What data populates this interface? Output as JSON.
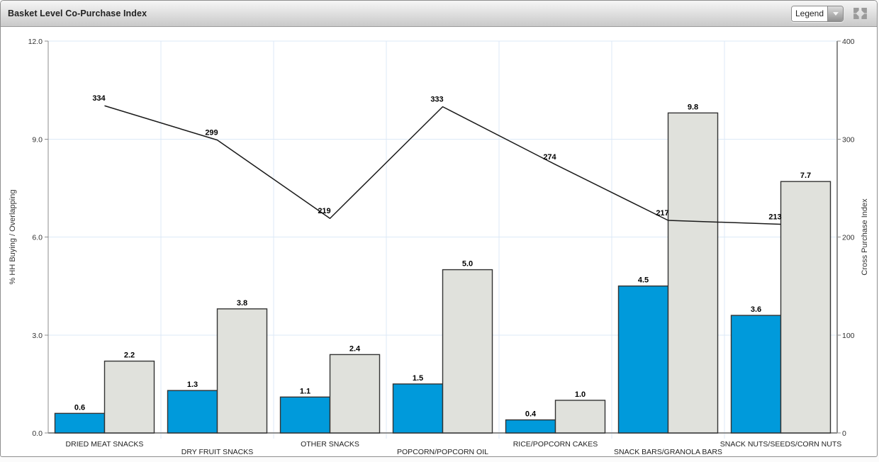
{
  "header": {
    "legend_label": "Legend",
    "dropdown_icon": "chevron-down-icon",
    "expand_icon": "expand-arrows-icon"
  },
  "chart_data": {
    "type": "combo-bar-line",
    "title": "Basket Level Co-Purchase Index",
    "categories": [
      "DRIED MEAT SNACKS",
      "DRY FRUIT SNACKS",
      "OTHER SNACKS",
      "POPCORN/POPCORN OIL",
      "RICE/POPCORN CAKES",
      "SNACK BARS/GRANOLA BARS",
      "SNACK NUTS/SEEDS/CORN NUTS"
    ],
    "series": [
      {
        "name": "% HH Buying",
        "type": "bar",
        "axis": "left",
        "color": "#009ADB",
        "border_color": "#333333",
        "values": [
          0.6,
          1.3,
          1.1,
          1.5,
          0.4,
          4.5,
          3.6
        ],
        "labels": [
          "0.6",
          "1.3",
          "1.1",
          "1.5",
          "0.4",
          "4.5",
          "3.6"
        ]
      },
      {
        "name": "Overlapping",
        "type": "bar",
        "axis": "left",
        "color": "#E0E1DC",
        "border_color": "#333333",
        "values": [
          2.2,
          3.8,
          2.4,
          5.0,
          1.0,
          9.8,
          7.7
        ],
        "labels": [
          "2.2",
          "3.8",
          "2.4",
          "5.0",
          "1.0",
          "9.8",
          "7.7"
        ]
      },
      {
        "name": "Cross Purchase Index",
        "type": "line",
        "axis": "right",
        "color": "#1A1A1A",
        "values": [
          334,
          299,
          219,
          333,
          274,
          217,
          213
        ],
        "labels": [
          "334",
          "299",
          "219",
          "333",
          "274",
          "217",
          "213"
        ]
      }
    ],
    "left_axis": {
      "title": "% HH Buying / Overlapping",
      "min": 0,
      "max": 12,
      "tick_values": [
        0,
        3,
        6,
        9,
        12
      ],
      "tick_labels": [
        "0.0",
        "3.0",
        "6.0",
        "9.0",
        "12.0"
      ]
    },
    "right_axis": {
      "title": "Cross Purchase Index",
      "min": 0,
      "max": 400,
      "tick_values": [
        0,
        100,
        200,
        300,
        400
      ],
      "tick_labels": [
        "0",
        "100",
        "200",
        "300",
        "400"
      ]
    },
    "style": {
      "grid_color": "#DCE9F7",
      "axis_color": "#8C8C8C",
      "label_color": "#000000",
      "tick_color": "#333333",
      "category_color": "#222222",
      "grid": true,
      "legend_position": "collapsed"
    }
  }
}
